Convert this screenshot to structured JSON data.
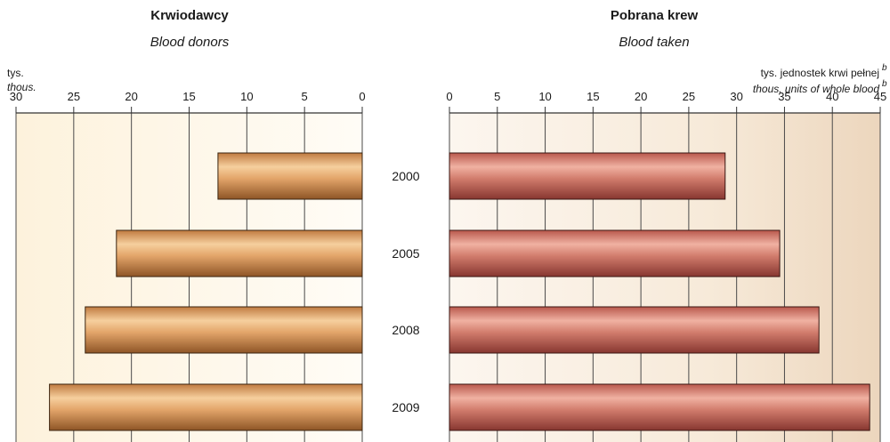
{
  "chart_data": [
    {
      "type": "bar",
      "orientation": "horizontal",
      "direction": "right-to-left",
      "title": "Krwiodawcy",
      "subtitle": "Blood donors",
      "unit_label": "tys.",
      "unit_label_en": "thous.",
      "unit_footnote": "",
      "categories": [
        "2000",
        "2005",
        "2008",
        "2009"
      ],
      "values": [
        12.5,
        21.3,
        24.0,
        27.1
      ],
      "xlim": [
        0,
        30
      ],
      "ticks": [
        30,
        25,
        20,
        15,
        10,
        5,
        0
      ],
      "grid": true,
      "bar_color": "#d99a5e",
      "bar_color_dark": "#8a5424"
    },
    {
      "type": "bar",
      "orientation": "horizontal",
      "direction": "left-to-right",
      "title": "Pobrana krew",
      "subtitle": "Blood taken",
      "unit_label": "tys. jednostek krwi pełnej",
      "unit_label_en": "thous. units of whole blood",
      "unit_footnote": "b",
      "categories": [
        "2000",
        "2005",
        "2008",
        "2009"
      ],
      "values": [
        28.8,
        34.5,
        38.6,
        43.9
      ],
      "xlim": [
        0,
        45
      ],
      "ticks": [
        0,
        5,
        10,
        15,
        20,
        25,
        30,
        35,
        40,
        45
      ],
      "grid": true,
      "bar_color": "#d98576",
      "bar_color_dark": "#8a3a34"
    }
  ],
  "colors": {
    "donors_bg": "#fcf3e2",
    "blood_bg_light": "#fbf5ee",
    "blood_bg_dark": "#efdcc6",
    "axis": "#333333",
    "grid": "#444444"
  }
}
